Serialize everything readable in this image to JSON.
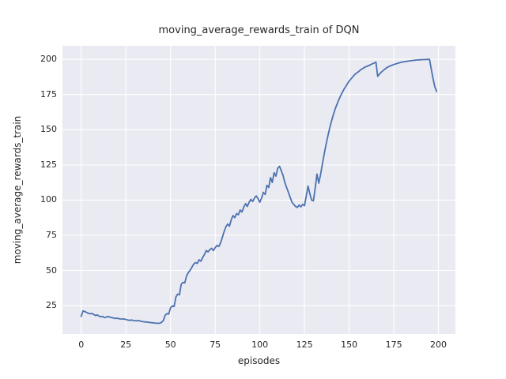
{
  "figure": {
    "title": "moving_average_rewards_train of DQN",
    "xlabel": "episodes",
    "ylabel": "moving_average_rewards_train"
  },
  "chart_data": {
    "type": "line",
    "title": "moving_average_rewards_train of DQN",
    "xlabel": "episodes",
    "ylabel": "moving_average_rewards_train",
    "legend": null,
    "grid": true,
    "xlim": [
      -10.5,
      209.5
    ],
    "ylim": [
      4.9,
      209.6
    ],
    "xticks": [
      0,
      25,
      50,
      75,
      100,
      125,
      150,
      175,
      200
    ],
    "yticks": [
      25,
      50,
      75,
      100,
      125,
      150,
      175,
      200
    ],
    "x_start": 0,
    "x_step": 1,
    "series": [
      {
        "name": "moving_average_rewards_train of DQN",
        "color": "#4c72b0",
        "values": [
          17.4,
          21.3,
          20.9,
          20.2,
          19.6,
          19.3,
          19.4,
          18.8,
          18.0,
          18.4,
          17.6,
          17.1,
          17.4,
          16.5,
          16.8,
          17.4,
          16.9,
          16.6,
          16.3,
          15.9,
          16.2,
          15.8,
          15.6,
          15.5,
          15.6,
          15.2,
          14.8,
          14.6,
          14.9,
          14.6,
          14.4,
          14.2,
          14.5,
          14.1,
          13.8,
          13.6,
          13.5,
          13.3,
          13.2,
          13.0,
          12.9,
          12.7,
          12.6,
          12.5,
          12.6,
          13.2,
          14.5,
          18.2,
          19.4,
          19.1,
          23.6,
          24.8,
          24.4,
          31.2,
          33.2,
          32.8,
          40.2,
          41.6,
          41.2,
          46.2,
          48.6,
          50.2,
          52.4,
          54.6,
          55.6,
          55.1,
          57.6,
          56.6,
          59.2,
          61.4,
          64.2,
          63.2,
          64.8,
          65.8,
          64.2,
          66.2,
          67.8,
          67.0,
          69.5,
          73.5,
          77.5,
          81.0,
          83.0,
          81.5,
          86.0,
          89.0,
          87.5,
          90.5,
          89.5,
          93.0,
          91.5,
          95.0,
          97.5,
          95.5,
          98.5,
          100.5,
          99.0,
          101.5,
          103.0,
          101.0,
          98.5,
          101.5,
          105.5,
          104.0,
          110.5,
          109.0,
          116.0,
          112.5,
          119.5,
          117.0,
          122.5,
          124.0,
          121.0,
          117.5,
          112.5,
          109.0,
          105.5,
          102.0,
          98.5,
          97.0,
          95.5,
          94.8,
          96.5,
          95.2,
          97.0,
          96.0,
          103.0,
          110.0,
          104.5,
          100.0,
          99.5,
          108.5,
          118.5,
          112.0,
          118.0,
          125.5,
          132.5,
          139.0,
          145.0,
          150.5,
          155.5,
          160.0,
          164.0,
          167.5,
          170.5,
          173.5,
          176.0,
          178.5,
          180.5,
          182.5,
          184.5,
          186.0,
          187.5,
          189.0,
          190.0,
          191.0,
          192.0,
          193.0,
          193.8,
          194.5,
          195.0,
          195.6,
          196.2,
          196.8,
          197.4,
          198.0,
          187.9,
          189.5,
          190.8,
          192.0,
          193.0,
          194.0,
          194.7,
          195.3,
          195.8,
          196.3,
          196.7,
          197.1,
          197.5,
          197.8,
          198.1,
          198.3,
          198.5,
          198.7,
          198.9,
          199.1,
          199.2,
          199.4,
          199.5,
          199.6,
          199.7,
          199.8,
          199.8,
          199.9,
          199.9,
          200.0,
          193.0,
          186.0,
          180.5,
          177.2
        ]
      }
    ],
    "style": {
      "fig_bg": "#ffffff",
      "axes_bg": "#eaeaf2",
      "grid_color": "#ffffff",
      "text_color": "#262626",
      "line_color": "#4c72b0"
    }
  }
}
